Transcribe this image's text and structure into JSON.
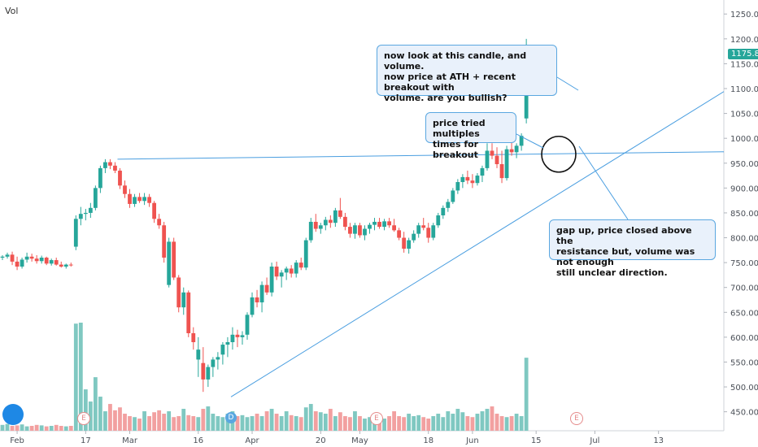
{
  "chart_data": {
    "type": "candlestick",
    "vol_label": "Vol",
    "last_price_label": "1175.80",
    "y_ticks": [
      "1250.00",
      "1200.00",
      "1150.00",
      "1100.00",
      "1050.00",
      "1000.00",
      "950.00",
      "900.00",
      "850.00",
      "800.00",
      "750.00",
      "700.00",
      "650.00",
      "600.00",
      "550.00",
      "500.00",
      "450.00"
    ],
    "y_tick_values": [
      1250,
      1200,
      1150,
      1100,
      1050,
      1000,
      950,
      900,
      850,
      800,
      750,
      700,
      650,
      600,
      550,
      500,
      450
    ],
    "ylim": [
      420,
      1270
    ],
    "x_ticks": [
      "Feb",
      "17",
      "Mar",
      "16",
      "Apr",
      "20",
      "May",
      "18",
      "Jun",
      "15",
      "Jul",
      "13"
    ],
    "x_tick_index": [
      3,
      17,
      26,
      40,
      51,
      65,
      73,
      87,
      96,
      109,
      121,
      134
    ],
    "candles": [
      [
        760,
        765,
        755,
        762
      ],
      [
        762,
        770,
        758,
        766
      ],
      [
        766,
        772,
        745,
        752
      ],
      [
        752,
        762,
        735,
        742
      ],
      [
        742,
        760,
        738,
        756
      ],
      [
        756,
        770,
        750,
        762
      ],
      [
        762,
        768,
        752,
        758
      ],
      [
        758,
        765,
        748,
        753
      ],
      [
        753,
        764,
        748,
        760
      ],
      [
        760,
        762,
        745,
        748
      ],
      [
        748,
        758,
        744,
        755
      ],
      [
        755,
        760,
        744,
        746
      ],
      [
        746,
        752,
        740,
        742
      ],
      [
        742,
        748,
        738,
        746
      ],
      [
        746,
        750,
        742,
        745
      ],
      [
        782,
        845,
        775,
        838
      ],
      [
        838,
        862,
        825,
        848
      ],
      [
        848,
        858,
        835,
        850
      ],
      [
        850,
        870,
        840,
        860
      ],
      [
        860,
        905,
        855,
        900
      ],
      [
        900,
        945,
        890,
        940
      ],
      [
        940,
        958,
        930,
        952
      ],
      [
        952,
        958,
        938,
        945
      ],
      [
        945,
        952,
        930,
        935
      ],
      [
        935,
        940,
        898,
        905
      ],
      [
        905,
        915,
        880,
        888
      ],
      [
        888,
        898,
        860,
        868
      ],
      [
        868,
        888,
        862,
        882
      ],
      [
        882,
        890,
        870,
        874
      ],
      [
        874,
        890,
        866,
        882
      ],
      [
        882,
        888,
        862,
        870
      ],
      [
        870,
        874,
        830,
        838
      ],
      [
        838,
        848,
        818,
        825
      ],
      [
        825,
        832,
        750,
        760
      ],
      [
        705,
        800,
        700,
        792
      ],
      [
        792,
        800,
        715,
        720
      ],
      [
        720,
        725,
        650,
        660
      ],
      [
        660,
        700,
        645,
        690
      ],
      [
        690,
        694,
        600,
        608
      ],
      [
        608,
        620,
        575,
        590
      ],
      [
        555,
        600,
        520,
        575
      ],
      [
        548,
        580,
        490,
        515
      ],
      [
        515,
        545,
        500,
        540
      ],
      [
        540,
        560,
        520,
        555
      ],
      [
        555,
        570,
        535,
        560
      ],
      [
        565,
        590,
        545,
        585
      ],
      [
        585,
        600,
        560,
        590
      ],
      [
        590,
        620,
        575,
        605
      ],
      [
        605,
        615,
        580,
        600
      ],
      [
        600,
        612,
        585,
        604
      ],
      [
        605,
        650,
        595,
        645
      ],
      [
        645,
        690,
        640,
        680
      ],
      [
        680,
        695,
        660,
        670
      ],
      [
        670,
        712,
        650,
        705
      ],
      [
        705,
        720,
        685,
        690
      ],
      [
        690,
        750,
        682,
        742
      ],
      [
        742,
        752,
        715,
        722
      ],
      [
        722,
        735,
        700,
        730
      ],
      [
        730,
        742,
        715,
        738
      ],
      [
        738,
        745,
        720,
        728
      ],
      [
        728,
        755,
        720,
        750
      ],
      [
        750,
        760,
        735,
        740
      ],
      [
        740,
        800,
        735,
        795
      ],
      [
        795,
        840,
        790,
        832
      ],
      [
        832,
        848,
        812,
        818
      ],
      [
        818,
        830,
        808,
        825
      ],
      [
        825,
        842,
        815,
        836
      ],
      [
        836,
        845,
        820,
        830
      ],
      [
        830,
        860,
        822,
        855
      ],
      [
        855,
        880,
        838,
        842
      ],
      [
        842,
        850,
        815,
        822
      ],
      [
        822,
        830,
        800,
        808
      ],
      [
        808,
        830,
        798,
        825
      ],
      [
        825,
        830,
        800,
        805
      ],
      [
        805,
        825,
        795,
        818
      ],
      [
        818,
        830,
        808,
        826
      ],
      [
        826,
        840,
        815,
        832
      ],
      [
        832,
        840,
        818,
        822
      ],
      [
        822,
        838,
        815,
        833
      ],
      [
        833,
        840,
        820,
        825
      ],
      [
        825,
        838,
        812,
        815
      ],
      [
        815,
        820,
        795,
        800
      ],
      [
        800,
        812,
        770,
        778
      ],
      [
        778,
        800,
        768,
        795
      ],
      [
        795,
        815,
        790,
        808
      ],
      [
        808,
        830,
        800,
        825
      ],
      [
        825,
        840,
        815,
        820
      ],
      [
        820,
        830,
        790,
        800
      ],
      [
        800,
        830,
        795,
        825
      ],
      [
        825,
        850,
        820,
        845
      ],
      [
        845,
        865,
        838,
        860
      ],
      [
        860,
        878,
        852,
        872
      ],
      [
        872,
        900,
        868,
        895
      ],
      [
        895,
        918,
        888,
        912
      ],
      [
        912,
        928,
        900,
        922
      ],
      [
        922,
        935,
        908,
        915
      ],
      [
        915,
        928,
        900,
        910
      ],
      [
        910,
        930,
        905,
        925
      ],
      [
        925,
        945,
        912,
        940
      ],
      [
        940,
        990,
        935,
        975
      ],
      [
        975,
        990,
        958,
        965
      ],
      [
        965,
        982,
        940,
        948
      ],
      [
        948,
        975,
        910,
        920
      ],
      [
        920,
        985,
        915,
        978
      ],
      [
        978,
        1000,
        965,
        972
      ],
      [
        972,
        990,
        960,
        985
      ],
      [
        985,
        1010,
        975,
        1005
      ],
      [
        1040,
        1200,
        1030,
        1175
      ]
    ],
    "volume": [
      12,
      14,
      10,
      11,
      13,
      9,
      10,
      12,
      11,
      9,
      10,
      12,
      10,
      9,
      10,
      220,
      222,
      85,
      60,
      110,
      70,
      40,
      55,
      42,
      48,
      35,
      30,
      28,
      25,
      40,
      30,
      38,
      42,
      35,
      40,
      28,
      30,
      45,
      32,
      30,
      28,
      45,
      50,
      35,
      30,
      28,
      35,
      40,
      30,
      32,
      28,
      30,
      35,
      30,
      40,
      45,
      35,
      30,
      40,
      32,
      30,
      28,
      48,
      55,
      40,
      38,
      35,
      45,
      30,
      38,
      30,
      28,
      40,
      30,
      25,
      28,
      30,
      35,
      25,
      30,
      40,
      30,
      28,
      35,
      30,
      32,
      28,
      25,
      30,
      35,
      28,
      40,
      35,
      45,
      38,
      30,
      28,
      35,
      40,
      45,
      50,
      35,
      30,
      28,
      30,
      35,
      30,
      150
    ]
  },
  "annotations": {
    "callout_top": "now look at this candle, and volume.\nnow price at ATH + recent breakout with\nvolume. are you bullish?",
    "callout_mid": "price tried multiples\ntimes for breakout",
    "callout_right": "gap up, price closed above the\nresistance but, volume was not enough\nstill unclear direction."
  },
  "markers": {
    "earnings_letter": "E",
    "dividend_letter": "D"
  },
  "colors": {
    "up": "#26a69a",
    "down": "#ef5350",
    "up_vol": "#7fc8c1",
    "down_vol": "#f2a0a0",
    "line": "#4a9ee0"
  }
}
